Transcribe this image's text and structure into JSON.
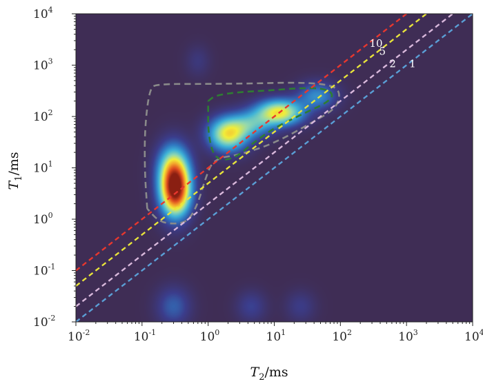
{
  "chart_data": {
    "type": "heatmap",
    "title": "",
    "xlabel": {
      "symbol": "T",
      "sub": "2",
      "unit": "/ms"
    },
    "ylabel": {
      "symbol": "T",
      "sub": "1",
      "unit": "/ms"
    },
    "x_scale": "log",
    "y_scale": "log",
    "xlim": [
      0.01,
      10000
    ],
    "ylim": [
      0.01,
      10000
    ],
    "x_ticks": [
      {
        "base": "10",
        "exp": "-2",
        "value": 0.01
      },
      {
        "base": "10",
        "exp": "-1",
        "value": 0.1
      },
      {
        "base": "10",
        "exp": "0",
        "value": 1
      },
      {
        "base": "10",
        "exp": "1",
        "value": 10
      },
      {
        "base": "10",
        "exp": "2",
        "value": 100
      },
      {
        "base": "10",
        "exp": "3",
        "value": 1000
      },
      {
        "base": "10",
        "exp": "4",
        "value": 10000
      }
    ],
    "y_ticks": [
      {
        "base": "10",
        "exp": "-2",
        "value": 0.01
      },
      {
        "base": "10",
        "exp": "-1",
        "value": 0.1
      },
      {
        "base": "10",
        "exp": "0",
        "value": 1
      },
      {
        "base": "10",
        "exp": "1",
        "value": 10
      },
      {
        "base": "10",
        "exp": "2",
        "value": 100
      },
      {
        "base": "10",
        "exp": "3",
        "value": 1000
      },
      {
        "base": "10",
        "exp": "4",
        "value": 10000
      }
    ],
    "ratio_lines": [
      {
        "ratio": 10,
        "label": "10",
        "color": "#e8372e",
        "label_at_T2": 250
      },
      {
        "ratio": 5,
        "label": "5",
        "color": "#e8e43a",
        "label_at_T2": 350
      },
      {
        "ratio": 2,
        "label": "2",
        "color": "#d9b8dc",
        "label_at_T2": 500
      },
      {
        "ratio": 1,
        "label": "1",
        "color": "#5a9fd6",
        "label_at_T2": 1000
      }
    ],
    "peaks": [
      {
        "name": "main-peak",
        "T2": 0.32,
        "T1": 3.5,
        "amplitude": 1.0,
        "sigma_log_T2": 0.15,
        "sigma_log_T1": 0.33
      },
      {
        "name": "upper-tail",
        "T2": 0.3,
        "T1": 10,
        "amplitude": 0.5,
        "sigma_log_T2": 0.16,
        "sigma_log_T1": 0.32
      },
      {
        "name": "mid-peak",
        "T2": 2.0,
        "T1": 45,
        "amplitude": 0.6,
        "sigma_log_T2": 0.2,
        "sigma_log_T1": 0.22
      },
      {
        "name": "right-peak",
        "T2": 12,
        "T1": 120,
        "amplitude": 0.62,
        "sigma_log_T2": 0.24,
        "sigma_log_T1": 0.17
      },
      {
        "name": "bridge",
        "T2": 4.5,
        "T1": 70,
        "amplitude": 0.3,
        "sigma_log_T2": 0.22,
        "sigma_log_T1": 0.18
      },
      {
        "name": "far-right-tail",
        "T2": 45,
        "T1": 250,
        "amplitude": 0.25,
        "sigma_log_T2": 0.2,
        "sigma_log_T1": 0.18
      },
      {
        "name": "bottom-blob-1",
        "T2": 0.3,
        "T1": 0.02,
        "amplitude": 0.16,
        "sigma_log_T2": 0.17,
        "sigma_log_T1": 0.25
      },
      {
        "name": "bottom-blob-2",
        "T2": 4.5,
        "T1": 0.02,
        "amplitude": 0.1,
        "sigma_log_T2": 0.15,
        "sigma_log_T1": 0.2
      },
      {
        "name": "bottom-blob-3",
        "T2": 25,
        "T1": 0.02,
        "amplitude": 0.08,
        "sigma_log_T2": 0.15,
        "sigma_log_T1": 0.2
      },
      {
        "name": "faint-top",
        "T2": 0.7,
        "T1": 1200,
        "amplitude": 0.06,
        "sigma_log_T2": 0.12,
        "sigma_log_T1": 0.2
      }
    ],
    "contours": [
      {
        "name": "grey-region-contour",
        "color": "#8a8a8a",
        "points": [
          [
            0.12,
            1.6
          ],
          [
            0.11,
            8
          ],
          [
            0.11,
            60
          ],
          [
            0.13,
            350
          ],
          [
            0.17,
            430
          ],
          [
            1.0,
            430
          ],
          [
            5,
            440
          ],
          [
            20,
            460
          ],
          [
            60,
            430
          ],
          [
            100,
            330
          ],
          [
            90,
            150
          ],
          [
            40,
            80
          ],
          [
            10,
            30
          ],
          [
            3,
            18
          ],
          [
            1.2,
            15
          ],
          [
            0.9,
            6
          ],
          [
            0.7,
            2
          ],
          [
            0.5,
            0.9
          ],
          [
            0.3,
            0.8
          ],
          [
            0.18,
            0.9
          ],
          [
            0.12,
            1.6
          ]
        ]
      },
      {
        "name": "green-region-contour",
        "color": "#2e7d32",
        "points": [
          [
            1.0,
            200
          ],
          [
            1.3,
            260
          ],
          [
            3,
            300
          ],
          [
            8,
            320
          ],
          [
            25,
            360
          ],
          [
            60,
            350
          ],
          [
            80,
            260
          ],
          [
            60,
            180
          ],
          [
            30,
            120
          ],
          [
            10,
            60
          ],
          [
            5,
            32
          ],
          [
            2.5,
            15
          ],
          [
            1.3,
            14
          ],
          [
            1.0,
            40
          ],
          [
            1.0,
            200
          ]
        ]
      }
    ],
    "colorscale": [
      "#3f2d55",
      "#3b3d8c",
      "#3076c0",
      "#3fb3d8",
      "#92d8b0",
      "#f2ee3a",
      "#f2a22c",
      "#de4a20",
      "#8a1f12"
    ]
  }
}
